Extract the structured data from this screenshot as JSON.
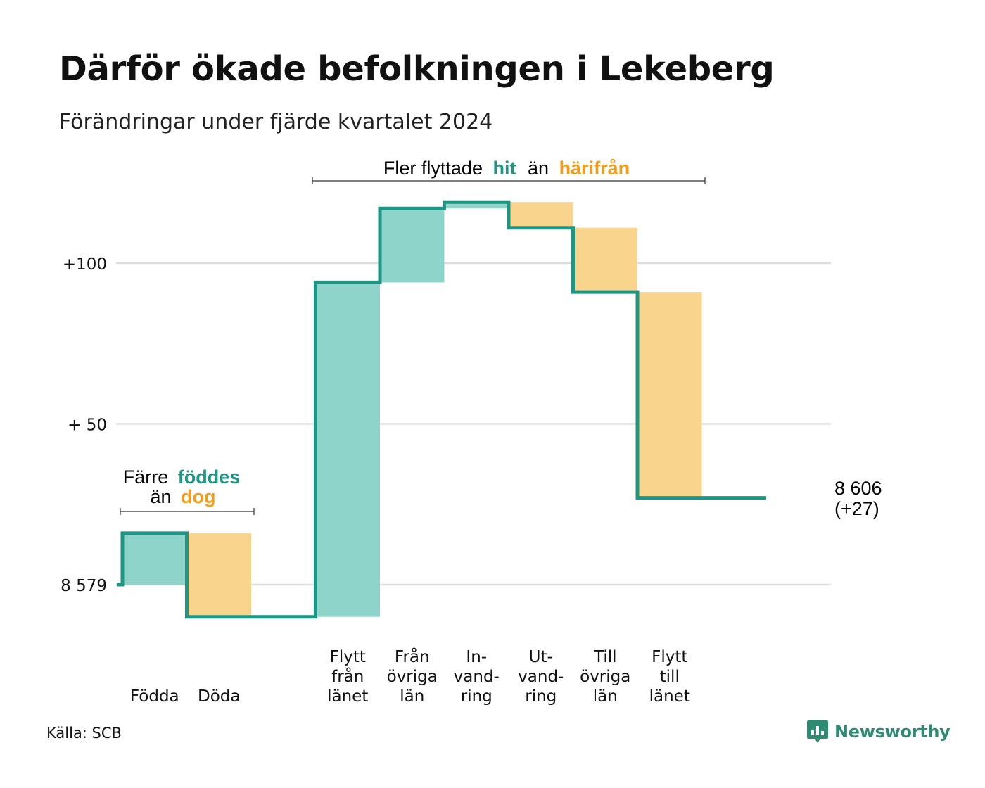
{
  "title": "Därför ökade befolkningen i Lekeberg",
  "subtitle": "Förändringar under fjärde kvartalet 2024",
  "source": "Källa: SCB",
  "brand": "Newsworthy",
  "colors": {
    "increase": "#8ed4cb",
    "decrease": "#f9d48d",
    "line": "#1f9583",
    "teal_text": "#1f9583",
    "orange_text": "#f39c1a",
    "grid": "#dddddd"
  },
  "annotations": {
    "birth_death": {
      "line1_a": "Färre",
      "line1_b": "föddes",
      "line2_a": "än",
      "line2_b": "dog"
    },
    "migration": {
      "a": "Fler flyttade",
      "b": "hit",
      "c": "än",
      "d": "härifrån"
    }
  },
  "end_label": {
    "line1": "8 606",
    "line2": "(+27)"
  },
  "chart_data": {
    "type": "waterfall",
    "start_value": 8579,
    "end_value": 8606,
    "change_total": 27,
    "y_ticks": [
      {
        "value": 0,
        "label": "8 579"
      },
      {
        "value": 50,
        "label": "+ 50"
      },
      {
        "value": 100,
        "label": "+100"
      }
    ],
    "steps": [
      {
        "label": [
          "Födda"
        ],
        "change": 16
      },
      {
        "label": [
          "Döda"
        ],
        "change": -26
      },
      {
        "label": [],
        "change": 0
      },
      {
        "label": [
          "Flytt",
          "från",
          "länet"
        ],
        "change": 104
      },
      {
        "label": [
          "Från",
          "övriga",
          "län"
        ],
        "change": 23
      },
      {
        "label": [
          "In-",
          "vand-",
          "ring"
        ],
        "change": 2
      },
      {
        "label": [
          "Ut-",
          "vand-",
          "ring"
        ],
        "change": -8
      },
      {
        "label": [
          "Till",
          "övriga",
          "län"
        ],
        "change": -20
      },
      {
        "label": [
          "Flytt",
          "till",
          "länet"
        ],
        "change": -64
      },
      {
        "label": [],
        "change": 0
      }
    ]
  }
}
